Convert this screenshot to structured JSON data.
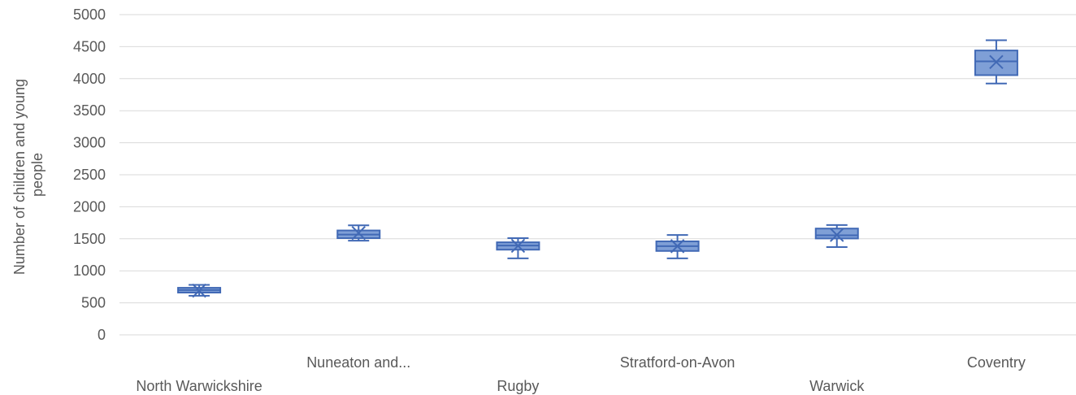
{
  "chart_data": {
    "type": "box",
    "title": "",
    "xlabel": "",
    "ylabel": "Number of children and young people",
    "ylabel_lines": [
      "Number of children and young",
      "people"
    ],
    "ylim": [
      0,
      5000
    ],
    "yticks": [
      0,
      500,
      1000,
      1500,
      2000,
      2500,
      3000,
      3500,
      4000,
      4500,
      5000
    ],
    "grid": true,
    "categories": [
      "North Warwickshire",
      "Nuneaton and...",
      "Rugby",
      "Stratford-on-Avon",
      "Warwick",
      "Coventry"
    ],
    "boxes": [
      {
        "category": "North Warwickshire",
        "min": 610,
        "q1": 660,
        "median": 700,
        "q3": 735,
        "max": 780,
        "mean": 690
      },
      {
        "category": "Nuneaton and...",
        "min": 1470,
        "q1": 1510,
        "median": 1565,
        "q3": 1630,
        "max": 1710,
        "mean": 1590
      },
      {
        "category": "Rugby",
        "min": 1195,
        "q1": 1330,
        "median": 1395,
        "q3": 1445,
        "max": 1510,
        "mean": 1390
      },
      {
        "category": "Stratford-on-Avon",
        "min": 1195,
        "q1": 1310,
        "median": 1385,
        "q3": 1460,
        "max": 1560,
        "mean": 1385
      },
      {
        "category": "Warwick",
        "min": 1370,
        "q1": 1505,
        "median": 1555,
        "q3": 1660,
        "max": 1715,
        "mean": 1560
      },
      {
        "category": "Coventry",
        "min": 3925,
        "q1": 4055,
        "median": 4270,
        "q3": 4440,
        "max": 4600,
        "mean": 4260
      }
    ],
    "colors": {
      "fill": "#7f9fd6",
      "stroke": "#4169b5",
      "grid": "#d9d9d9",
      "text": "#595959"
    }
  }
}
